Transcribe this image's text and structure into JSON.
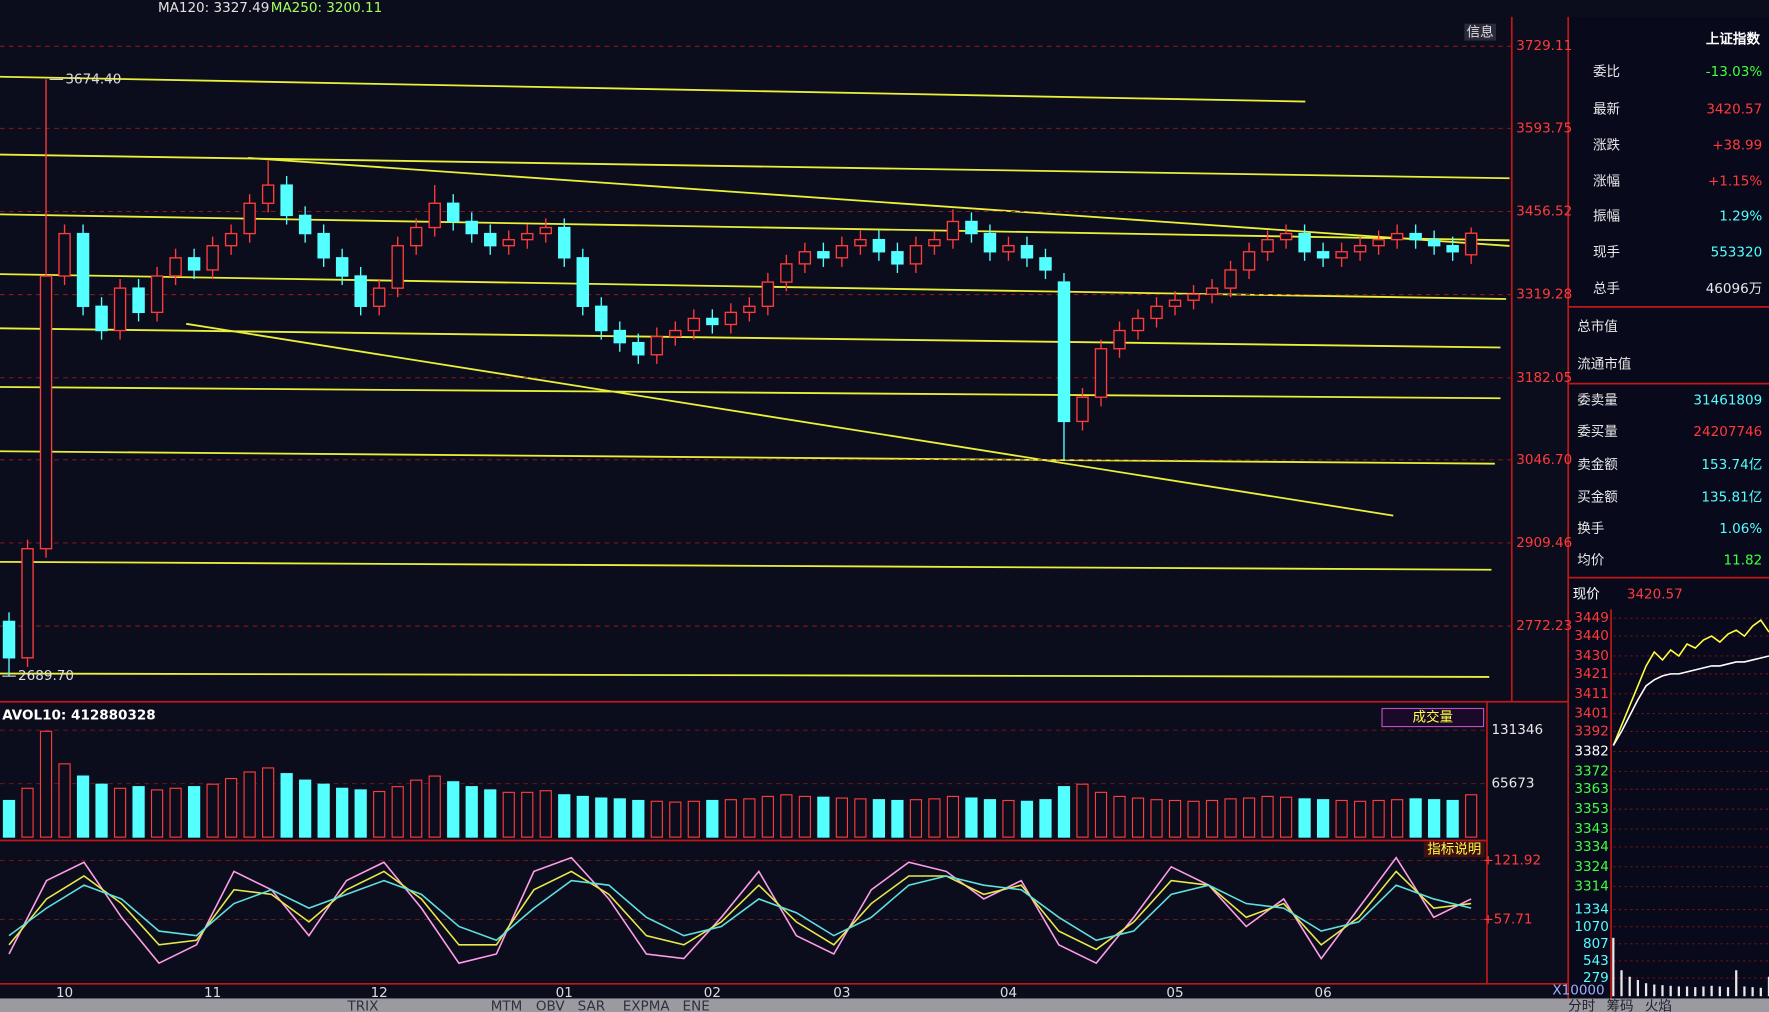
{
  "chart_data": [
    {
      "type": "candlestick",
      "indicators": [
        "MA120: 3327.49",
        "MA250: 3200.11"
      ],
      "categories": [
        null,
        null,
        null,
        "10",
        null,
        null,
        null,
        null,
        null,
        null,
        null,
        "11",
        null,
        null,
        null,
        null,
        null,
        null,
        null,
        null,
        "12",
        null,
        null,
        null,
        null,
        null,
        null,
        null,
        null,
        null,
        "01",
        null,
        null,
        null,
        null,
        null,
        null,
        null,
        "02",
        null,
        null,
        null,
        null,
        null,
        null,
        "03",
        null,
        null,
        null,
        null,
        null,
        null,
        null,
        null,
        "04",
        null,
        null,
        null,
        null,
        null,
        null,
        null,
        null,
        "05",
        null,
        null,
        null,
        null,
        null,
        null,
        null,
        "06",
        null,
        null,
        null,
        null,
        null,
        null,
        null,
        null
      ],
      "open": [
        2780,
        2720,
        2900,
        3350,
        3420,
        3300,
        3260,
        3330,
        3290,
        3350,
        3380,
        3360,
        3400,
        3420,
        3470,
        3500,
        3450,
        3420,
        3380,
        3350,
        3300,
        3330,
        3400,
        3430,
        3470,
        3440,
        3420,
        3400,
        3410,
        3420,
        3430,
        3380,
        3300,
        3260,
        3240,
        3220,
        3250,
        3260,
        3280,
        3270,
        3290,
        3300,
        3340,
        3370,
        3390,
        3380,
        3400,
        3410,
        3390,
        3370,
        3400,
        3410,
        3440,
        3420,
        3390,
        3400,
        3380,
        3340,
        3110,
        3150,
        3230,
        3260,
        3280,
        3300,
        3310,
        3320,
        3330,
        3360,
        3390,
        3410,
        3420,
        3390,
        3380,
        3390,
        3400,
        3410,
        3420,
        3410,
        3400,
        3385
      ],
      "high": [
        2795,
        2915,
        3674.4,
        3435,
        3435,
        3315,
        3345,
        3345,
        3365,
        3395,
        3395,
        3415,
        3435,
        3485,
        3540,
        3515,
        3465,
        3435,
        3395,
        3365,
        3345,
        3415,
        3445,
        3500,
        3485,
        3455,
        3435,
        3425,
        3435,
        3445,
        3445,
        3395,
        3315,
        3275,
        3255,
        3265,
        3275,
        3295,
        3295,
        3305,
        3315,
        3355,
        3385,
        3405,
        3405,
        3415,
        3425,
        3425,
        3405,
        3415,
        3425,
        3460,
        3455,
        3435,
        3415,
        3415,
        3395,
        3355,
        3165,
        3245,
        3275,
        3295,
        3315,
        3325,
        3335,
        3345,
        3375,
        3405,
        3425,
        3435,
        3435,
        3405,
        3405,
        3415,
        3425,
        3435,
        3435,
        3425,
        3415,
        3430
      ],
      "low": [
        2689.7,
        2705,
        2885,
        3335,
        3285,
        3245,
        3245,
        3275,
        3275,
        3335,
        3345,
        3345,
        3385,
        3405,
        3455,
        3435,
        3405,
        3365,
        3335,
        3285,
        3285,
        3315,
        3385,
        3415,
        3425,
        3405,
        3385,
        3385,
        3395,
        3405,
        3365,
        3285,
        3245,
        3225,
        3205,
        3205,
        3235,
        3245,
        3255,
        3255,
        3275,
        3285,
        3325,
        3355,
        3365,
        3365,
        3385,
        3375,
        3355,
        3355,
        3385,
        3395,
        3405,
        3375,
        3375,
        3365,
        3345,
        3046.7,
        3095,
        3135,
        3215,
        3245,
        3265,
        3285,
        3295,
        3305,
        3315,
        3345,
        3375,
        3395,
        3375,
        3365,
        3365,
        3375,
        3385,
        3395,
        3395,
        3385,
        3375,
        3370
      ],
      "close": [
        2720,
        2900,
        3350,
        3420,
        3300,
        3260,
        3330,
        3290,
        3350,
        3380,
        3360,
        3400,
        3420,
        3470,
        3500,
        3450,
        3420,
        3380,
        3350,
        3300,
        3330,
        3400,
        3430,
        3470,
        3440,
        3420,
        3400,
        3410,
        3420,
        3430,
        3380,
        3300,
        3260,
        3240,
        3220,
        3250,
        3260,
        3280,
        3270,
        3290,
        3300,
        3340,
        3370,
        3390,
        3380,
        3400,
        3410,
        3390,
        3370,
        3400,
        3410,
        3440,
        3420,
        3390,
        3400,
        3380,
        3360,
        3110,
        3150,
        3230,
        3260,
        3280,
        3300,
        3310,
        3320,
        3330,
        3360,
        3390,
        3410,
        3420,
        3390,
        3380,
        3390,
        3400,
        3410,
        3420,
        3410,
        3400,
        3390,
        3420.57
      ],
      "up_color": "#ff3b3b",
      "down_color": "#54ffff",
      "ylim": [
        2651.2,
        3777.5
      ],
      "yticks": [
        3729.11,
        3593.75,
        3456.52,
        3319.28,
        3182.05,
        {
          "value": 3046.7,
          "label": "3046.70"
        },
        2909.46,
        2772.23
      ],
      "grid": true,
      "annotations": [
        {
          "value": 3674.4,
          "label": "3674.40"
        },
        {
          "value": 2689.7,
          "label": "2689.70"
        }
      ]
    },
    {
      "type": "bar",
      "title": "AVOL10: 412880328",
      "button": "成交量",
      "values": [
        45000,
        60000,
        130000,
        90000,
        75000,
        65000,
        60000,
        62000,
        58000,
        60000,
        62000,
        65000,
        72000,
        80000,
        85000,
        78000,
        70000,
        65000,
        60000,
        58000,
        56000,
        62000,
        70000,
        75000,
        68000,
        62000,
        58000,
        55000,
        55000,
        57000,
        52000,
        50000,
        48000,
        47000,
        45000,
        44000,
        43000,
        44000,
        45000,
        46000,
        47000,
        50000,
        52000,
        50000,
        49000,
        48000,
        47000,
        46000,
        45000,
        46000,
        47000,
        50000,
        48000,
        46000,
        45000,
        44000,
        46000,
        62000,
        65000,
        55000,
        50000,
        48000,
        46000,
        45000,
        44000,
        45000,
        47000,
        48000,
        50000,
        49000,
        47000,
        46000,
        45000,
        44000,
        45000,
        46000,
        47000,
        46000,
        45000,
        52000
      ],
      "ylim": [
        0,
        158000
      ],
      "yticks": [
        131346,
        65673
      ],
      "grid": true
    },
    {
      "type": "line",
      "title": "指标说明",
      "series": [
        {
          "color": "#ff9ee8",
          "values": [
            20,
            100,
            120,
            60,
            10,
            30,
            110,
            90,
            40,
            100,
            120,
            70,
            10,
            20,
            110,
            125,
            80,
            20,
            15,
            60,
            110,
            40,
            20,
            90,
            120,
            110,
            80,
            100,
            30,
            10,
            60,
            115,
            95,
            50,
            80,
            15,
            70,
            125,
            60,
            80
          ]
        },
        {
          "color": "#e8e84a",
          "values": [
            30,
            80,
            105,
            75,
            30,
            35,
            90,
            85,
            55,
            90,
            110,
            80,
            30,
            30,
            90,
            110,
            85,
            40,
            30,
            55,
            95,
            55,
            30,
            75,
            105,
            105,
            85,
            95,
            45,
            25,
            55,
            100,
            95,
            60,
            75,
            30,
            60,
            110,
            70,
            75
          ]
        },
        {
          "color": "#5fe0e0",
          "values": [
            40,
            70,
            95,
            80,
            45,
            40,
            75,
            90,
            70,
            85,
            100,
            85,
            50,
            35,
            70,
            100,
            95,
            60,
            40,
            50,
            80,
            65,
            40,
            60,
            95,
            105,
            95,
            90,
            60,
            35,
            45,
            85,
            95,
            75,
            70,
            45,
            55,
            95,
            80,
            70
          ]
        }
      ],
      "ylim": [
        -10,
        140
      ],
      "yticks": [
        {
          "value": 121.92,
          "label": "+121.92"
        },
        {
          "value": 57.71,
          "label": "+57.71"
        }
      ],
      "grid": true
    },
    {
      "type": "line",
      "title": "现价",
      "last_price": 3420.57,
      "series": [
        {
          "color": "#ffff40",
          "values": [
            3385,
            3395,
            3405,
            3415,
            3425,
            3432,
            3428,
            3433,
            3430,
            3436,
            3434,
            3438,
            3440,
            3437,
            3441,
            3443,
            3440,
            3445,
            3448,
            3442
          ]
        },
        {
          "color": "#ffffff",
          "values": [
            3385,
            3392,
            3400,
            3408,
            3415,
            3418,
            3420,
            3421,
            3421,
            3422,
            3423,
            3424,
            3425,
            3425,
            3426,
            3427,
            3427,
            3428,
            3429,
            3430
          ]
        }
      ],
      "ylim": [
        3311.7,
        3453.5
      ],
      "yticks": [
        3449,
        3440,
        3430,
        3421,
        3411,
        3401,
        3392,
        3382,
        3372,
        3363,
        3353,
        3343,
        3334,
        3324,
        3314
      ],
      "grid": true,
      "volume": {
        "unit": "X10000",
        "color": "#e8e8e8",
        "values": [
          900,
          400,
          300,
          250,
          200,
          180,
          170,
          160,
          150,
          150,
          140,
          150,
          160,
          150,
          140,
          400,
          150,
          140,
          130,
          300
        ],
        "ylim": [
          0,
          1530
        ],
        "yticks": [
          1334,
          1070,
          807,
          543,
          279
        ]
      }
    }
  ],
  "toolbar": [
    "信息"
  ],
  "panel": {
    "title": "上证指数",
    "rows": [
      {
        "label": "委比",
        "value": "-13.03%",
        "color": "#40ff40"
      },
      {
        "label": "最新",
        "value": "3420.57",
        "color": "#ff3b3b"
      },
      {
        "label": "涨跌",
        "value": "+38.99",
        "color": "#ff3b3b"
      },
      {
        "label": "涨幅",
        "value": "+1.15%",
        "color": "#ff3b3b"
      },
      {
        "label": "振幅",
        "value": "1.29%",
        "color": "#54ffff"
      },
      {
        "label": "现手",
        "value": "553320",
        "color": "#54ffff"
      },
      {
        "label": "总手",
        "value": "46096万",
        "color": "#e8e8e8"
      },
      {
        "label": "总市值",
        "value": "",
        "color": "#e8e8e8"
      },
      {
        "label": "流通市值",
        "value": "",
        "color": "#e8e8e8"
      },
      {
        "label": "委卖量",
        "value": "31461809",
        "color": "#54ffff"
      },
      {
        "label": "委买量",
        "value": "24207746",
        "color": "#ff3b3b"
      },
      {
        "label": "卖金额",
        "value": "153.74亿",
        "color": "#54ffff"
      },
      {
        "label": "买金额",
        "value": "135.81亿",
        "color": "#54ffff"
      },
      {
        "label": "换手",
        "value": "1.06%",
        "color": "#54ffff"
      },
      {
        "label": "均价",
        "value": "11.82",
        "color": "#40ff40"
      }
    ]
  },
  "tabs_left": [
    "TRIX",
    "MTM",
    "OBV",
    "SAR",
    "EXPMA",
    "ENE"
  ],
  "tabs_right": [
    "分时",
    "筹码",
    "火焰"
  ]
}
